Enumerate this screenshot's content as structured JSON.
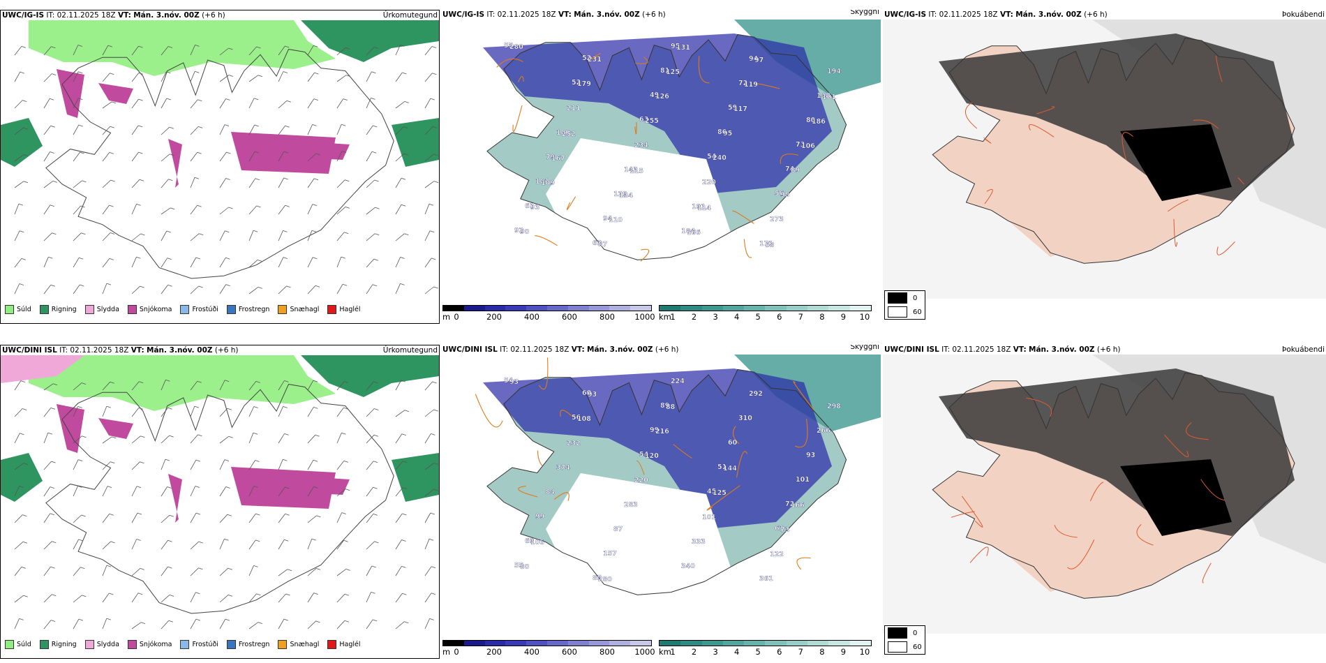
{
  "rows": [
    {
      "model": "UWC/IG-IS",
      "it_label": "IT:",
      "it_value": "02.11.2025 18Z",
      "vt_label": "VT:",
      "vt_value": "Mán. 3.nóv. 00Z",
      "lead": "(+6 h)"
    },
    {
      "model": "UWC/DINI ISL",
      "it_label": "IT:",
      "it_value": "02.11.2025 18Z",
      "vt_label": "VT:",
      "vt_value": "Mán. 3.nóv. 00Z",
      "lead": "(+6 h)"
    }
  ],
  "panel_labels": {
    "precip": "Úrkomutegund",
    "visibility": "Skyggni",
    "fog": "Þokuábendi"
  },
  "precip_legend": [
    {
      "label": "Súld",
      "color": "#90ee80"
    },
    {
      "label": "Rigning",
      "color": "#2e9460"
    },
    {
      "label": "Slydda",
      "color": "#f0a8d8"
    },
    {
      "label": "Snjókoma",
      "color": "#c04a9e"
    },
    {
      "label": "Frostúði",
      "color": "#8ab8e8"
    },
    {
      "label": "Frostregn",
      "color": "#3a76c0"
    },
    {
      "label": "Snæhagl",
      "color": "#f0a020"
    },
    {
      "label": "Haglél",
      "color": "#e01818"
    }
  ],
  "cloud_base_bar": {
    "unit": "m",
    "ticks": [
      "0",
      "200",
      "400",
      "600",
      "800",
      "1000"
    ],
    "colors": [
      "#000000",
      "#1a1a8c",
      "#2a2aa8",
      "#3a3ab8",
      "#5050c0",
      "#6868c8",
      "#8080d0",
      "#9898d8",
      "#b0b0e0",
      "#c8c8ea"
    ]
  },
  "visibility_bar": {
    "unit": "km",
    "ticks": [
      "1",
      "2",
      "3",
      "4",
      "5",
      "6",
      "7",
      "8",
      "9",
      "10"
    ],
    "colors": [
      "#1f7a72",
      "#2e8a82",
      "#3e9890",
      "#52a69e",
      "#68b4ac",
      "#80c2ba",
      "#98cec8",
      "#b0dad4",
      "#c8e6e2",
      "#e2f2f0"
    ]
  },
  "fog_legend": [
    {
      "label": "0",
      "color": "#000000"
    },
    {
      "label": "60",
      "color": "#ffffff"
    }
  ],
  "cloud_labels_row1": [
    "55",
    "52",
    "63",
    "54",
    "56",
    "92",
    "52",
    "49",
    "86",
    "74",
    "61",
    "62",
    "81",
    "59",
    "73",
    "101",
    "94",
    "95",
    "72",
    "80",
    "79",
    "129",
    "104",
    "94",
    "148",
    "100",
    "143",
    "191",
    "171",
    "194",
    "211",
    "234",
    "220",
    "273",
    "280",
    "179",
    "255",
    "240",
    "98",
    "90",
    "231",
    "126",
    "95",
    "89",
    "93",
    "87",
    "125",
    "117",
    "106",
    "109",
    "110",
    "131",
    "119",
    "186",
    "167",
    "134",
    "166",
    "97",
    "101",
    "252",
    "115",
    "114",
    "68"
  ],
  "cloud_labels_row2": [
    "54",
    "56",
    "54",
    "45",
    "61",
    "55",
    "60",
    "99",
    "51",
    "72",
    "69",
    "85",
    "89",
    "60",
    "101",
    "99",
    "157",
    "224",
    "310",
    "93",
    "84",
    "87",
    "340",
    "292",
    "266",
    "374",
    "283",
    "333",
    "361",
    "298",
    "232",
    "220",
    "101",
    "122",
    "93",
    "108",
    "120",
    "125",
    "73",
    "80",
    "93",
    "216",
    "144",
    "166",
    "106",
    "280",
    "88"
  ]
}
